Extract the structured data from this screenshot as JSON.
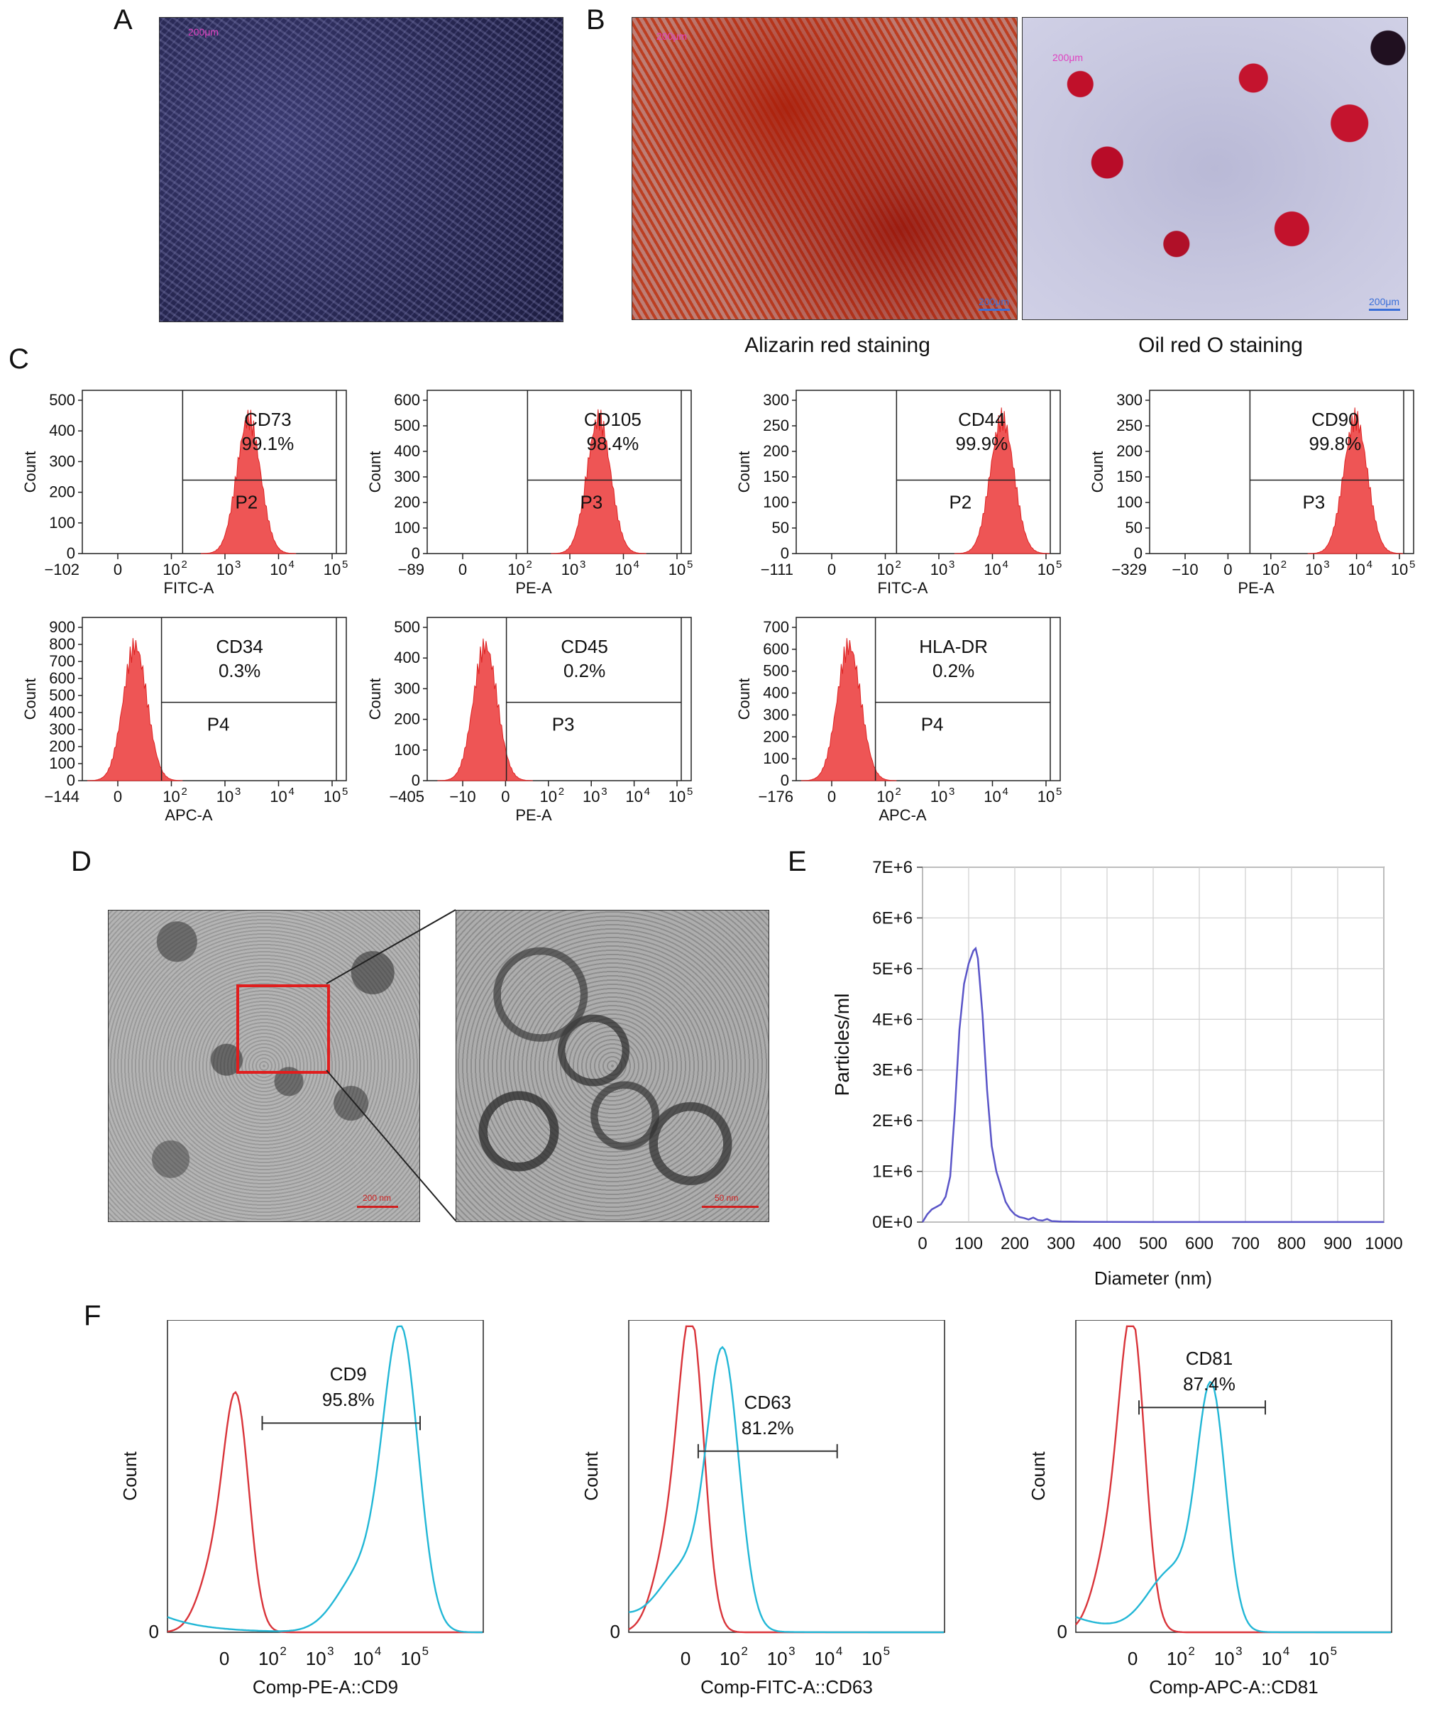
{
  "panels": {
    "A": "A",
    "B": "B",
    "C": "C",
    "D": "D",
    "E": "E",
    "F": "F"
  },
  "panel_a": {
    "scale_label": "200μm"
  },
  "panel_b": {
    "left_caption": "Alizarin red staining",
    "right_caption": "Oil red O staining",
    "left_scale_top": "200μm",
    "left_scale_bottom": "200μm",
    "right_scale_top": "200μm",
    "right_scale_bottom": "200μm"
  },
  "panel_d": {
    "left_scale": "200 nm",
    "right_scale": "50 nm"
  },
  "colors": {
    "flow_fill": "#ee5555",
    "nta_line": "#5a55c8",
    "control_curve": "#d9343a",
    "marker_curve": "#22b7d6",
    "zoom_box": "#e01e1e"
  },
  "flow_plots": [
    {
      "marker": "CD73",
      "percent": "99.1%",
      "gate": "P2",
      "xaxis": "FITC-A",
      "xmin": "−102",
      "xticks": [
        "0",
        "10",
        "10",
        "10",
        "10"
      ],
      "yticks": [
        "0",
        "100",
        "200",
        "300",
        "400",
        "500"
      ],
      "ylabel": "Count",
      "peak_pos": 0.63
    },
    {
      "marker": "CD105",
      "percent": "98.4%",
      "gate": "P3",
      "xaxis": "PE-A",
      "xmin": "−89",
      "xticks": [
        "0",
        "10",
        "10",
        "10",
        "10"
      ],
      "yticks": [
        "0",
        "100",
        "200",
        "300",
        "400",
        "500",
        "600"
      ],
      "ylabel": "Count",
      "peak_pos": 0.65
    },
    {
      "marker": "CD44",
      "percent": "99.9%",
      "gate": "P2",
      "xaxis": "FITC-A",
      "xmin": "−111",
      "xticks": [
        "0",
        "10",
        "10",
        "10",
        "10"
      ],
      "yticks": [
        "0",
        "50",
        "100",
        "150",
        "200",
        "250",
        "300"
      ],
      "ylabel": "Count",
      "peak_pos": 0.78
    },
    {
      "marker": "CD90",
      "percent": "99.8%",
      "gate": "P3",
      "xaxis": "PE-A",
      "xmin": "−329",
      "xticks": [
        "−10",
        "0",
        "10",
        "10",
        "10",
        "10"
      ],
      "yticks": [
        "0",
        "50",
        "100",
        "150",
        "200",
        "250",
        "300"
      ],
      "ylabel": "Count",
      "peak_pos": 0.78
    },
    {
      "marker": "CD34",
      "percent": "0.3%",
      "gate": "P4",
      "xaxis": "APC-A",
      "xmin": "−144",
      "xticks": [
        "0",
        "10",
        "10",
        "10",
        "10"
      ],
      "yticks": [
        "0",
        "100",
        "200",
        "300",
        "400",
        "500",
        "600",
        "700",
        "800",
        "900"
      ],
      "ylabel": "Count",
      "peak_pos": 0.2
    },
    {
      "marker": "CD45",
      "percent": "0.2%",
      "gate": "P3",
      "xaxis": "PE-A",
      "xmin": "−405",
      "xticks": [
        "−10",
        "0",
        "10",
        "10",
        "10",
        "10"
      ],
      "yticks": [
        "0",
        "100",
        "200",
        "300",
        "400",
        "500"
      ],
      "ylabel": "Count",
      "peak_pos": 0.22
    },
    {
      "marker": "HLA-DR",
      "percent": "0.2%",
      "gate": "P4",
      "xaxis": "APC-A",
      "xmin": "−176",
      "xticks": [
        "0",
        "10",
        "10",
        "10",
        "10"
      ],
      "yticks": [
        "0",
        "100",
        "200",
        "300",
        "400",
        "500",
        "600",
        "700"
      ],
      "ylabel": "Count",
      "peak_pos": 0.2
    }
  ],
  "chart_data": {
    "type": "line",
    "title": "",
    "xlabel": "Diameter (nm)",
    "ylabel": "Particles/ml",
    "xlim": [
      0,
      1000
    ],
    "ylim": [
      0,
      7000000
    ],
    "x_ticks": [
      "0",
      "100",
      "200",
      "300",
      "400",
      "500",
      "600",
      "700",
      "800",
      "900",
      "1000"
    ],
    "y_ticks": [
      "0E+0",
      "1E+6",
      "2E+6",
      "3E+6",
      "4E+6",
      "5E+6",
      "6E+6",
      "7E+6"
    ],
    "grid": true,
    "x": [
      0,
      10,
      20,
      30,
      40,
      50,
      60,
      70,
      80,
      90,
      100,
      110,
      115,
      120,
      130,
      140,
      150,
      160,
      170,
      180,
      190,
      200,
      210,
      220,
      230,
      240,
      250,
      260,
      270,
      280,
      290,
      300,
      320,
      350,
      400,
      500,
      600,
      700,
      800,
      900,
      1000
    ],
    "values": [
      0,
      150000,
      250000,
      300000,
      350000,
      500000,
      900000,
      2200000,
      3800000,
      4700000,
      5100000,
      5350000,
      5400000,
      5200000,
      4100000,
      2600000,
      1500000,
      1000000,
      700000,
      400000,
      250000,
      150000,
      100000,
      80000,
      50000,
      90000,
      40000,
      30000,
      60000,
      20000,
      15000,
      10000,
      8000,
      5000,
      3000,
      2000,
      1000,
      1000,
      1000,
      1000,
      1000
    ]
  },
  "exosome_flow": [
    {
      "marker": "CD9",
      "percent": "95.8%",
      "xaxis": "Comp-PE-A::CD9",
      "ylabel": "Count",
      "y0": "0",
      "xticks": [
        "0",
        "10",
        "10",
        "10",
        "10"
      ]
    },
    {
      "marker": "CD63",
      "percent": "81.2%",
      "xaxis": "Comp-FITC-A::CD63",
      "ylabel": "Count",
      "y0": "0",
      "xticks": [
        "0",
        "10",
        "10",
        "10",
        "10"
      ]
    },
    {
      "marker": "CD81",
      "percent": "87.4%",
      "xaxis": "Comp-APC-A::CD81",
      "ylabel": "Count",
      "y0": "0",
      "xticks": [
        "0",
        "10",
        "10",
        "10",
        "10"
      ]
    }
  ]
}
